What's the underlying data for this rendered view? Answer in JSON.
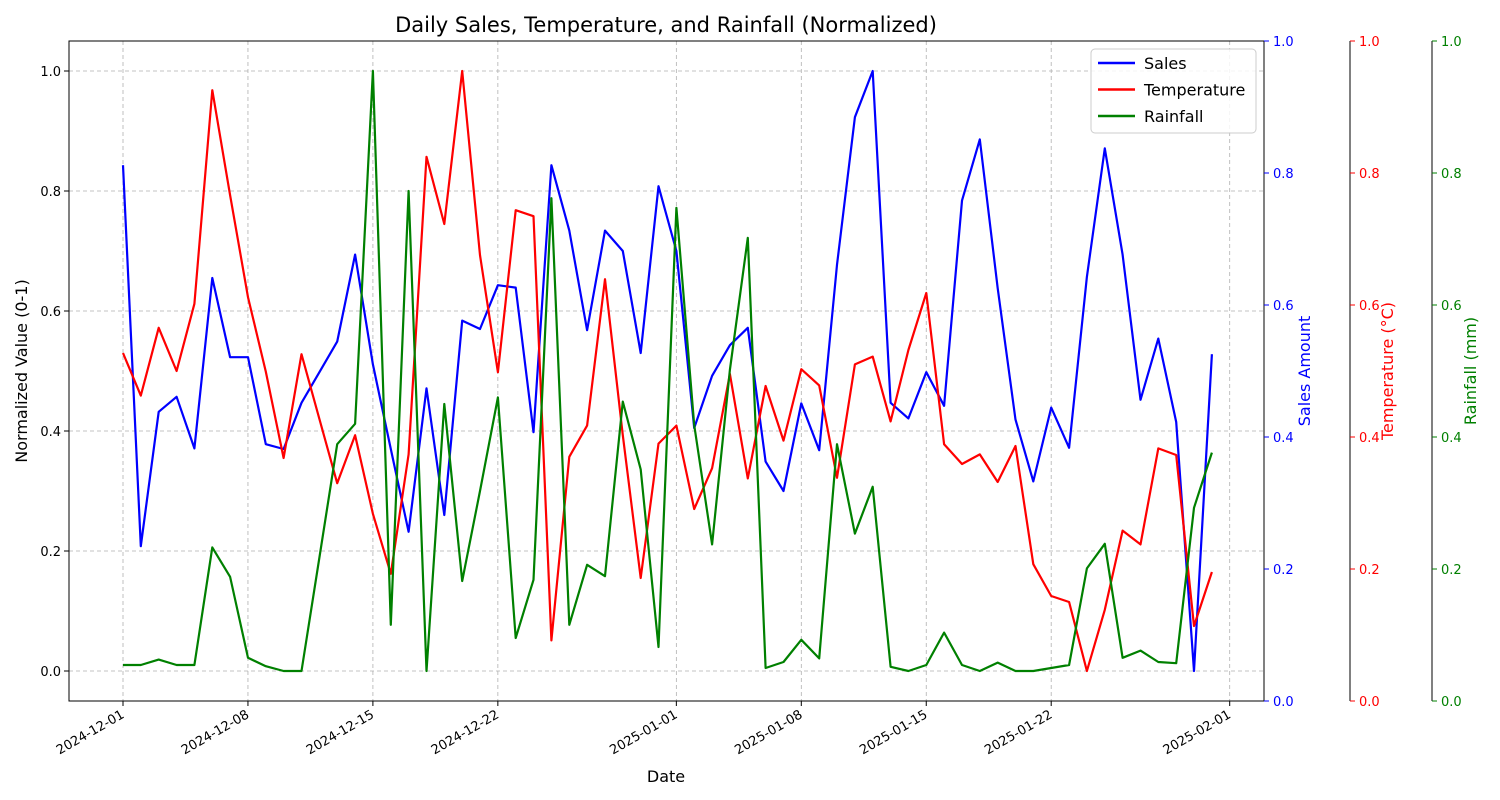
{
  "chart_data": {
    "type": "line",
    "title": "Daily Sales, Temperature, and Rainfall (Normalized)",
    "xlabel": "Date",
    "ylabel": "Normalized Value (0-1)",
    "ylim": [
      -0.05,
      1.05
    ],
    "x_start": "2024-12-01",
    "x_tick_labels": [
      "2024-12-01",
      "2024-12-08",
      "2024-12-15",
      "2024-12-22",
      "2025-01-01",
      "2025-01-08",
      "2025-01-15",
      "2025-01-22",
      "2025-02-01"
    ],
    "y_tick_labels": [
      "0.0",
      "0.2",
      "0.4",
      "0.6",
      "0.8",
      "1.0"
    ],
    "grid": true,
    "legend_position": "top-right",
    "series": [
      {
        "name": "Sales",
        "color": "#0000ff",
        "values": [
          0.843,
          0.208,
          0.432,
          0.457,
          0.371,
          0.655,
          0.523,
          0.523,
          0.378,
          0.37,
          0.447,
          0.498,
          0.549,
          0.694,
          0.511,
          0.37,
          0.232,
          0.471,
          0.26,
          0.584,
          0.57,
          0.643,
          0.639,
          0.398,
          0.843,
          0.734,
          0.568,
          0.734,
          0.7,
          0.53,
          0.808,
          0.7,
          0.405,
          0.492,
          0.543,
          0.572,
          0.349,
          0.3,
          0.446,
          0.368,
          0.677,
          0.923,
          1.0,
          0.447,
          0.421,
          0.498,
          0.442,
          0.784,
          0.886,
          0.638,
          0.419,
          0.316,
          0.439,
          0.372,
          0.657,
          0.871,
          0.694,
          0.452,
          0.554,
          0.415,
          0.0,
          0.528
        ]
      },
      {
        "name": "Temperature",
        "color": "#ff0000",
        "values": [
          0.53,
          0.459,
          0.572,
          0.5,
          0.612,
          0.968,
          0.793,
          0.623,
          0.499,
          0.355,
          0.528,
          0.42,
          0.313,
          0.393,
          0.262,
          0.162,
          0.361,
          0.857,
          0.745,
          1.0,
          0.693,
          0.498,
          0.768,
          0.758,
          0.051,
          0.357,
          0.409,
          0.653,
          0.393,
          0.155,
          0.379,
          0.409,
          0.27,
          0.338,
          0.495,
          0.321,
          0.475,
          0.384,
          0.503,
          0.476,
          0.322,
          0.511,
          0.524,
          0.416,
          0.535,
          0.63,
          0.378,
          0.345,
          0.361,
          0.315,
          0.375,
          0.178,
          0.125,
          0.115,
          0.0,
          0.102,
          0.234,
          0.211,
          0.371,
          0.36,
          0.075,
          0.165
        ]
      },
      {
        "name": "Rainfall",
        "color": "#008000",
        "values": [
          0.01,
          0.01,
          0.019,
          0.01,
          0.01,
          0.206,
          0.157,
          0.022,
          0.008,
          0.0,
          0.0,
          0.189,
          0.378,
          0.412,
          1.0,
          0.077,
          0.8,
          0.0,
          0.445,
          0.15,
          0.3,
          0.456,
          0.055,
          0.152,
          0.788,
          0.077,
          0.177,
          0.158,
          0.449,
          0.336,
          0.04,
          0.772,
          0.41,
          0.211,
          0.502,
          0.722,
          0.005,
          0.015,
          0.052,
          0.021,
          0.378,
          0.229,
          0.307,
          0.007,
          0.0,
          0.01,
          0.064,
          0.01,
          0.0,
          0.014,
          0.0,
          0.0,
          0.005,
          0.01,
          0.171,
          0.212,
          0.022,
          0.034,
          0.015,
          0.013,
          0.272,
          0.364
        ]
      }
    ],
    "secondary_axes": [
      {
        "label": "Sales Amount",
        "color": "#0000ff",
        "ylim": [
          0,
          1
        ],
        "tick_labels": [
          "0.0",
          "0.2",
          "0.4",
          "0.6",
          "0.8",
          "1.0"
        ]
      },
      {
        "label": "Temperature (°C)",
        "color": "#ff0000",
        "ylim": [
          0,
          1
        ],
        "tick_labels": [
          "0.0",
          "0.2",
          "0.4",
          "0.6",
          "0.8",
          "1.0"
        ]
      },
      {
        "label": "Rainfall (mm)",
        "color": "#008000",
        "ylim": [
          0,
          1
        ],
        "tick_labels": [
          "0.0",
          "0.2",
          "0.4",
          "0.6",
          "0.8",
          "1.0"
        ]
      }
    ]
  }
}
